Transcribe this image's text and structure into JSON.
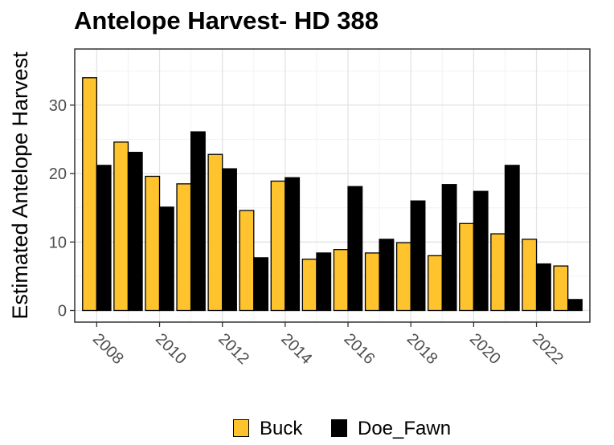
{
  "chart_data": {
    "type": "bar",
    "title": "Antelope Harvest- HD 388",
    "xlabel": "",
    "ylabel": "Estimated Antelope Harvest",
    "x": [
      2008,
      2009,
      2010,
      2011,
      2012,
      2013,
      2014,
      2015,
      2016,
      2017,
      2018,
      2019,
      2020,
      2021,
      2022,
      2023
    ],
    "x_tick_labels": [
      "2008",
      "2010",
      "2012",
      "2014",
      "2016",
      "2018",
      "2020",
      "2022"
    ],
    "y_ticks": [
      0,
      10,
      20,
      30
    ],
    "ylim": [
      -1.7,
      38.2
    ],
    "grid": true,
    "legend_position": "bottom",
    "series": [
      {
        "name": "Buck",
        "color": "#FFC32E",
        "values": [
          34.0,
          24.6,
          19.6,
          18.5,
          22.8,
          14.6,
          18.9,
          7.5,
          8.9,
          8.4,
          9.9,
          8.0,
          12.7,
          11.2,
          10.4,
          6.5
        ]
      },
      {
        "name": "Doe_Fawn",
        "color": "#000000",
        "values": [
          21.2,
          23.1,
          15.1,
          26.1,
          20.7,
          7.7,
          19.4,
          8.4,
          18.1,
          10.4,
          16.0,
          18.4,
          17.4,
          21.2,
          6.8,
          1.6
        ]
      }
    ]
  }
}
